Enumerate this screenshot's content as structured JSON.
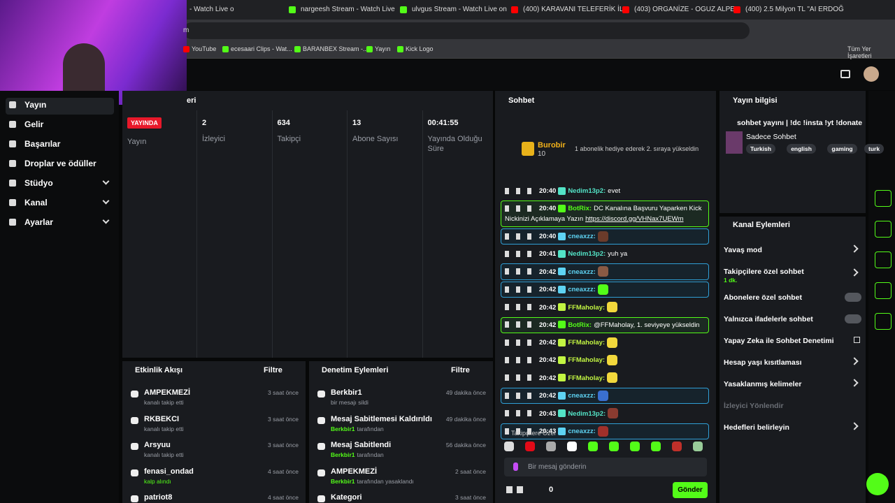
{
  "browser": {
    "tabs": [
      "- Watch Live o",
      "nargeesh Stream - Watch Live",
      "ulvgus Stream - Watch Live on",
      "(400) KARAVANI TELEFERİK İLE",
      "(403) ORGANİZE - OGUZ ALPE",
      "(400) 2.5 Milyon TL \"AI ERDOĞ"
    ],
    "address": "m",
    "bookmarks": [
      "YouTube",
      "ecesaari Clips - Wat...",
      "BARANBEX Stream -...",
      "Yayın",
      "Kick Logo"
    ],
    "all_bookmarks": "Tüm Yer İşaretleri"
  },
  "sidebar": {
    "items": [
      "Yayın",
      "Gelir",
      "Başarılar",
      "Droplar ve ödüller",
      "Stüdyo",
      "Kanal",
      "Ayarlar"
    ]
  },
  "stream": {
    "title": "eri",
    "live": "YAYINDA",
    "live_label": "Yayın",
    "stats": [
      {
        "value": "2",
        "label": "İzleyici"
      },
      {
        "value": "634",
        "label": "Takipçi"
      },
      {
        "value": "13",
        "label": "Abone Sayısı"
      },
      {
        "value": "00:41:55",
        "label": "Yayında Olduğu Süre"
      }
    ]
  },
  "activity": {
    "title": "Etkinlik Akışı",
    "filter": "Filtre",
    "items": [
      {
        "name": "AMPEKMEZİ",
        "desc": "kanalı takip etti",
        "time": "3 saat önce"
      },
      {
        "name": "RKBEKCI",
        "desc": "kanalı takip etti",
        "time": "3 saat önce"
      },
      {
        "name": "Arsyuu",
        "desc": "kanalı takip etti",
        "time": "3 saat önce"
      },
      {
        "name": "fenasi_ondad",
        "desc": "kalp alındı",
        "time": "4 saat önce"
      },
      {
        "name": "patriot8",
        "time": "4 saat önce"
      }
    ]
  },
  "moderation": {
    "title": "Denetim Eylemleri",
    "filter": "Filtre",
    "items": [
      {
        "name": "Berkbir1",
        "desc": "bir mesajı sildi",
        "time": "49 dakika önce"
      },
      {
        "name": "Mesaj Sabitlemesi Kaldırıldı",
        "by": "Berkbir1",
        "desc": "tarafından",
        "time": "49 dakika önce"
      },
      {
        "name": "Mesaj Sabitlendi",
        "by": "Berkbir1",
        "desc": "tarafından",
        "time": "56 dakika önce"
      },
      {
        "name": "AMPEKMEZİ",
        "by": "Berkbir1",
        "desc": "tarafından yasaklandı",
        "time": "2 saat önce"
      },
      {
        "name": "Kategori",
        "time": "3 saat önce"
      }
    ]
  },
  "chat": {
    "title": "Sohbet",
    "pinned": {
      "user": "Burobir",
      "count": "10",
      "text": "1 abonelik hediye ederek 2. sıraya yükseldin"
    },
    "messages": [
      {
        "time": "20:40",
        "user": "Nedim13p2:",
        "color": "#53e3c6",
        "text": "evet"
      },
      {
        "time": "20:40",
        "user": "BotRix:",
        "color": "#53fc18",
        "text": "DC Kanalına Başvuru Yaparken Kick Nickinizi Açıklamaya Yazın",
        "link": "https://discord.gg/VHNax7UEWm",
        "border": "#53fc18"
      },
      {
        "time": "20:40",
        "user": "cneaxzz:",
        "color": "#5ed3f3",
        "emote": "#6b3b2a",
        "border": "#2f9fd6"
      },
      {
        "time": "20:41",
        "user": "Nedim13p2:",
        "color": "#53e3c6",
        "text": "yuh ya"
      },
      {
        "time": "20:42",
        "user": "cneaxzz:",
        "color": "#5ed3f3",
        "emote": "#8a5a44",
        "border": "#2f9fd6"
      },
      {
        "time": "20:42",
        "user": "cneaxzz:",
        "color": "#5ed3f3",
        "emote": "#53fc18",
        "border": "#2f9fd6"
      },
      {
        "time": "20:42",
        "user": "FFMaholay:",
        "color": "#c2f542",
        "emote": "#f2d83c"
      },
      {
        "time": "20:42",
        "user": "BotRix:",
        "color": "#53fc18",
        "text": "@FFMaholay, 1. seviyeye yükseldin",
        "border": "#53fc18"
      },
      {
        "time": "20:42",
        "user": "FFMaholay:",
        "color": "#c2f542",
        "emote": "#f2d83c"
      },
      {
        "time": "20:42",
        "user": "FFMaholay:",
        "color": "#c2f542",
        "emote": "#f2d83c"
      },
      {
        "time": "20:42",
        "user": "FFMaholay:",
        "color": "#c2f542",
        "emote": "#f2d83c"
      },
      {
        "time": "20:42",
        "user": "cneaxzz:",
        "color": "#5ed3f3",
        "emote": "#3a6fd0",
        "border": "#2f9fd6"
      },
      {
        "time": "20:43",
        "user": "Nedim13p2:",
        "color": "#53e3c6",
        "emote": "#8a3b30"
      },
      {
        "time": "20:43",
        "user": "cneaxzz:",
        "color": "#5ed3f3",
        "emote": "#a0302a",
        "border": "#2f9fd6"
      }
    ],
    "mode": "Takipçilere Özel",
    "placeholder": "Bir mesaj gönderin",
    "count": "0",
    "send": "Gönder"
  },
  "stream_info": {
    "title": "Yayın bilgisi",
    "stream_title": "sohbet yayını | !dc !insta !yt !donate",
    "category": "Sadece Sohbet",
    "tags": [
      "Turkish",
      "english",
      "gaming",
      "turk"
    ]
  },
  "channel_actions": {
    "title": "Kanal Eylemleri",
    "items": [
      {
        "label": "Yavaş mod",
        "control": "arrow"
      },
      {
        "label": "Takipçilere özel sohbet",
        "sub": "1 dk.",
        "control": "arrow"
      },
      {
        "label": "Abonelere özel sohbet",
        "control": "toggle"
      },
      {
        "label": "Yalnızca ifadelerle sohbet",
        "control": "toggle"
      },
      {
        "label": "Yapay Zeka ile Sohbet Denetimi",
        "control": "external"
      },
      {
        "label": "Hesap yaşı kısıtlaması",
        "control": "arrow"
      },
      {
        "label": "Yasaklanmış kelimeler",
        "control": "arrow"
      },
      {
        "label": "İzleyici Yönlendir",
        "control": "disabled"
      },
      {
        "label": "Hedefleri belirleyin",
        "control": "arrow"
      }
    ]
  }
}
